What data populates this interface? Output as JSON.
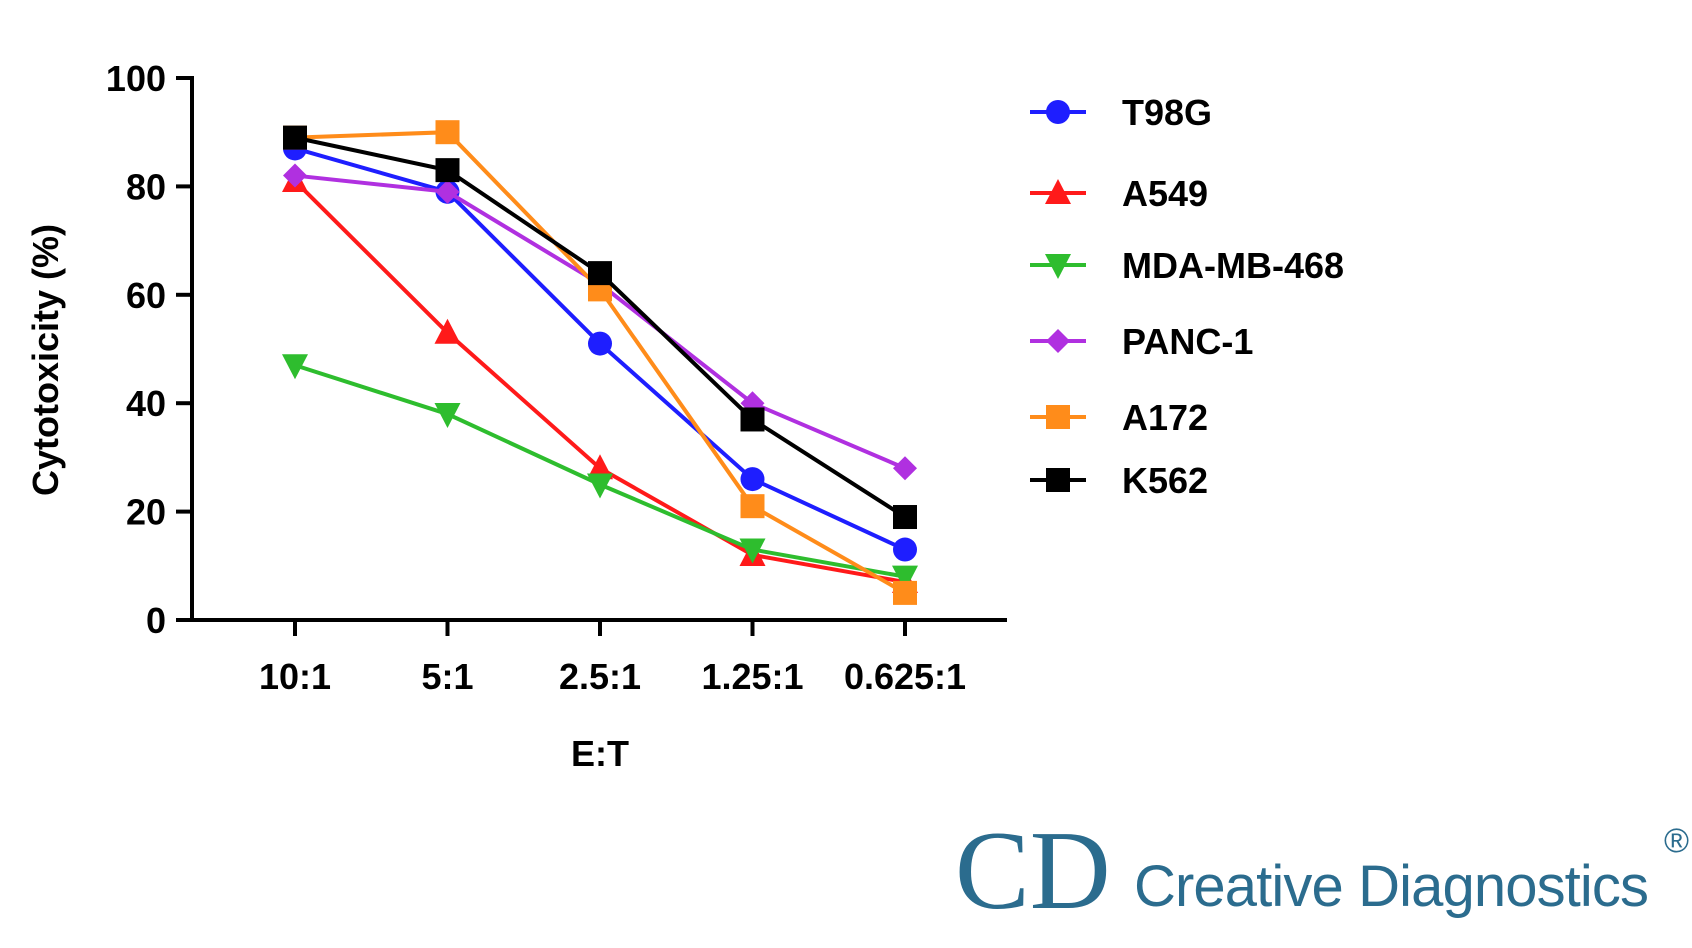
{
  "chart_data": {
    "type": "line",
    "x_label": "E:T",
    "y_label": "Cytotoxicity (%)",
    "categories": [
      "10:1",
      "5:1",
      "2.5:1",
      "1.25:1",
      "0.625:1"
    ],
    "ylim": [
      0,
      100
    ],
    "yticks": [
      0,
      20,
      40,
      60,
      80,
      100
    ],
    "series": [
      {
        "name": "T98G",
        "color": "#1e1eff",
        "marker": "circle",
        "values": [
          87,
          79,
          51,
          26,
          13
        ]
      },
      {
        "name": "A549",
        "color": "#ff1a1a",
        "marker": "triangle-up",
        "values": [
          81,
          53,
          28,
          12,
          7
        ]
      },
      {
        "name": "MDA-MB-468",
        "color": "#2ebd2e",
        "marker": "triangle-down",
        "values": [
          47,
          38,
          25,
          13,
          8
        ]
      },
      {
        "name": "PANC-1",
        "color": "#b030e0",
        "marker": "diamond",
        "values": [
          82,
          79,
          62,
          40,
          28
        ]
      },
      {
        "name": "A172",
        "color": "#ff8c1a",
        "marker": "square",
        "values": [
          89,
          90,
          61,
          21,
          5
        ]
      },
      {
        "name": "K562",
        "color": "#000000",
        "marker": "square",
        "values": [
          89,
          83,
          64,
          37,
          19
        ]
      }
    ]
  },
  "logo": {
    "mark": "CD",
    "name": "Creative Diagnostics",
    "registered": "®"
  }
}
